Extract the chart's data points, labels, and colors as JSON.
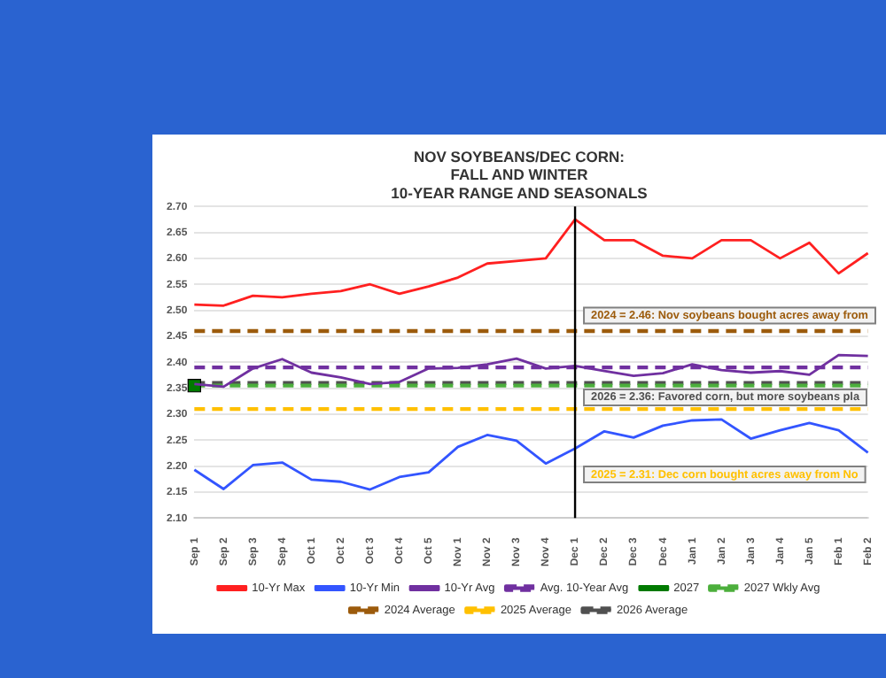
{
  "chart_data": {
    "type": "line",
    "title": "NOV SOYBEANS/DEC CORN:\nFALL AND WINTER\n10-YEAR RANGE AND SEASONALS",
    "categories": [
      "Sep 1",
      "Sep 2",
      "Sep 3",
      "Sep 4",
      "Oct 1",
      "Oct 2",
      "Oct 3",
      "Oct 4",
      "Oct 5",
      "Nov 1",
      "Nov 2",
      "Nov 3",
      "Nov 4",
      "Dec 1",
      "Dec 2",
      "Dec 3",
      "Dec 4",
      "Jan 1",
      "Jan 2",
      "Jan 3",
      "Jan 4",
      "Jan 5",
      "Feb 1",
      "Feb 2"
    ],
    "ylim": [
      2.1,
      2.7
    ],
    "yticks": [
      {
        "value": 2.1,
        "label": "2.10"
      },
      2.15,
      {
        "value": 2.2,
        "label": "2.20"
      },
      2.25,
      {
        "value": 2.3,
        "label": "2.30"
      },
      2.35,
      {
        "value": 2.4,
        "label": "2.40"
      },
      2.45,
      {
        "value": 2.5,
        "label": "2.50"
      },
      2.55,
      {
        "value": 2.6,
        "label": "2.60"
      },
      2.65,
      {
        "value": 2.7,
        "label": "2.70"
      }
    ],
    "grid": "y",
    "legend": "bottom",
    "marker": "none",
    "series": [
      {
        "name": "10-Yr Max",
        "color": "#ff2020",
        "line_style": "solid",
        "values": [
          2.511,
          2.509,
          2.528,
          2.525,
          2.532,
          2.537,
          2.55,
          2.532,
          2.546,
          2.563,
          2.59,
          2.595,
          2.6,
          2.675,
          2.635,
          2.635,
          2.605,
          2.6,
          2.635,
          2.635,
          2.6,
          2.63,
          2.571,
          2.61
        ]
      },
      {
        "name": "10-Yr Min",
        "color": "#3355ff",
        "line_style": "solid",
        "values": [
          2.193,
          2.156,
          2.202,
          2.207,
          2.174,
          2.17,
          2.155,
          2.179,
          2.188,
          2.237,
          2.26,
          2.249,
          2.205,
          2.234,
          2.267,
          2.255,
          2.278,
          2.288,
          2.29,
          2.253,
          2.269,
          2.283,
          2.269,
          2.226
        ]
      },
      {
        "name": "10-Yr Avg",
        "color": "#7030a0",
        "line_style": "solid",
        "values": [
          2.358,
          2.353,
          2.388,
          2.406,
          2.38,
          2.371,
          2.358,
          2.362,
          2.388,
          2.389,
          2.396,
          2.407,
          2.388,
          2.393,
          2.383,
          2.374,
          2.379,
          2.396,
          2.385,
          2.38,
          2.383,
          2.376,
          2.414,
          2.412
        ]
      },
      {
        "name": "Avg. 10-Year Avg",
        "color": "#7030a0",
        "line_style": "dashed",
        "values": [
          2.39,
          2.39,
          2.39,
          2.39,
          2.39,
          2.39,
          2.39,
          2.39,
          2.39,
          2.39,
          2.39,
          2.39,
          2.39,
          2.39,
          2.39,
          2.39,
          2.39,
          2.39,
          2.39,
          2.39,
          2.39,
          2.39,
          2.39,
          2.39
        ]
      },
      {
        "name": "2027",
        "color": "#007a00",
        "line_style": "solid",
        "marker": "square",
        "values": [
          2.355,
          null,
          null,
          null,
          null,
          null,
          null,
          null,
          null,
          null,
          null,
          null,
          null,
          null,
          null,
          null,
          null,
          null,
          null,
          null,
          null,
          null,
          null,
          null
        ]
      },
      {
        "name": "2027 Wkly Avg",
        "color": "#4caf3c",
        "line_style": "dashed",
        "values": [
          2.355,
          2.355,
          2.355,
          2.355,
          2.355,
          2.355,
          2.355,
          2.355,
          2.355,
          2.355,
          2.355,
          2.355,
          2.355,
          2.355,
          2.355,
          2.355,
          2.355,
          2.355,
          2.355,
          2.355,
          2.355,
          2.355,
          2.355,
          2.355
        ]
      },
      {
        "name": "2024 Average",
        "color": "#9c5b0c",
        "line_style": "dashed",
        "values": [
          2.46,
          2.46,
          2.46,
          2.46,
          2.46,
          2.46,
          2.46,
          2.46,
          2.46,
          2.46,
          2.46,
          2.46,
          2.46,
          2.46,
          2.46,
          2.46,
          2.46,
          2.46,
          2.46,
          2.46,
          2.46,
          2.46,
          2.46,
          2.46
        ]
      },
      {
        "name": "2025 Average",
        "color": "#ffc000",
        "line_style": "dashed",
        "values": [
          2.31,
          2.31,
          2.31,
          2.31,
          2.31,
          2.31,
          2.31,
          2.31,
          2.31,
          2.31,
          2.31,
          2.31,
          2.31,
          2.31,
          2.31,
          2.31,
          2.31,
          2.31,
          2.31,
          2.31,
          2.31,
          2.31,
          2.31,
          2.31
        ]
      },
      {
        "name": "2026 Average",
        "color": "#505050",
        "line_style": "dashed",
        "values": [
          2.36,
          2.36,
          2.36,
          2.36,
          2.36,
          2.36,
          2.36,
          2.36,
          2.36,
          2.36,
          2.36,
          2.36,
          2.36,
          2.36,
          2.36,
          2.36,
          2.36,
          2.36,
          2.36,
          2.36,
          2.36,
          2.36,
          2.36,
          2.36
        ]
      }
    ],
    "ref_lines": [
      {
        "axis": "x",
        "value": "Dec 1",
        "color": "#000000"
      }
    ],
    "annotations": [
      "2024 = 2.46: Nov soybeans bought acres away from",
      "2026 = 2.36: Favored corn, but more soybeans pla",
      "2025 = 2.31: Dec corn bought acres away from No"
    ]
  }
}
